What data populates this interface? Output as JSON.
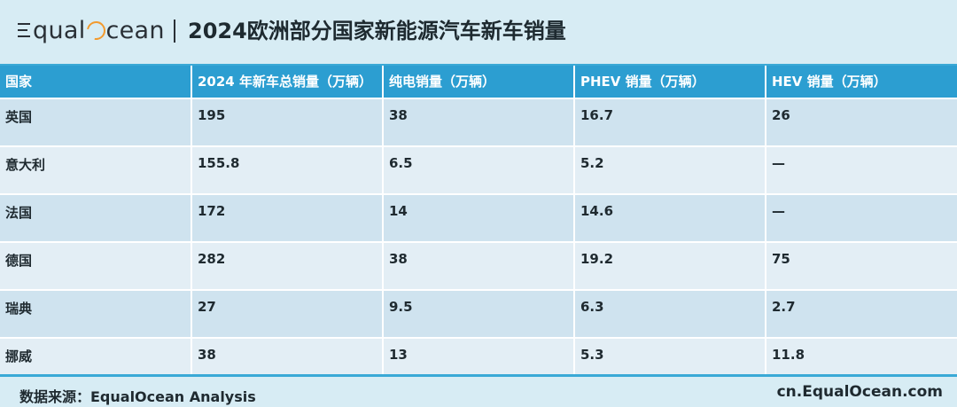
{
  "header": {
    "logo_text_left": "qual",
    "logo_text_right": "cean",
    "title": "2024欧洲部分国家新能源汽车新车销量"
  },
  "chart_data": {
    "type": "table",
    "columns": [
      "国家",
      "2024 年新车总销量（万辆）",
      "纯电销量（万辆）",
      "PHEV 销量（万辆）",
      "HEV 销量（万辆）"
    ],
    "rows": [
      [
        "英国",
        "195",
        "38",
        "16.7",
        "26"
      ],
      [
        "意大利",
        "155.8",
        "6.5",
        "5.2",
        "—"
      ],
      [
        "法国",
        "172",
        "14",
        "14.6",
        "—"
      ],
      [
        "德国",
        "282",
        "38",
        "19.2",
        "75"
      ],
      [
        "瑞典",
        "27",
        "9.5",
        "6.3",
        "2.7"
      ],
      [
        "挪威",
        "38",
        "13",
        "5.3",
        "11.8"
      ]
    ]
  },
  "footer": {
    "source": "数据来源：EqualOcean Analysis",
    "site": "cn.EqualOcean.com"
  },
  "colors": {
    "header_bg": "#2c9ed1",
    "row_odd": "#cfe3ef",
    "row_even": "#e3eef5",
    "page_bg": "#d7ecf4",
    "logo_accent": "#f29a2e"
  }
}
